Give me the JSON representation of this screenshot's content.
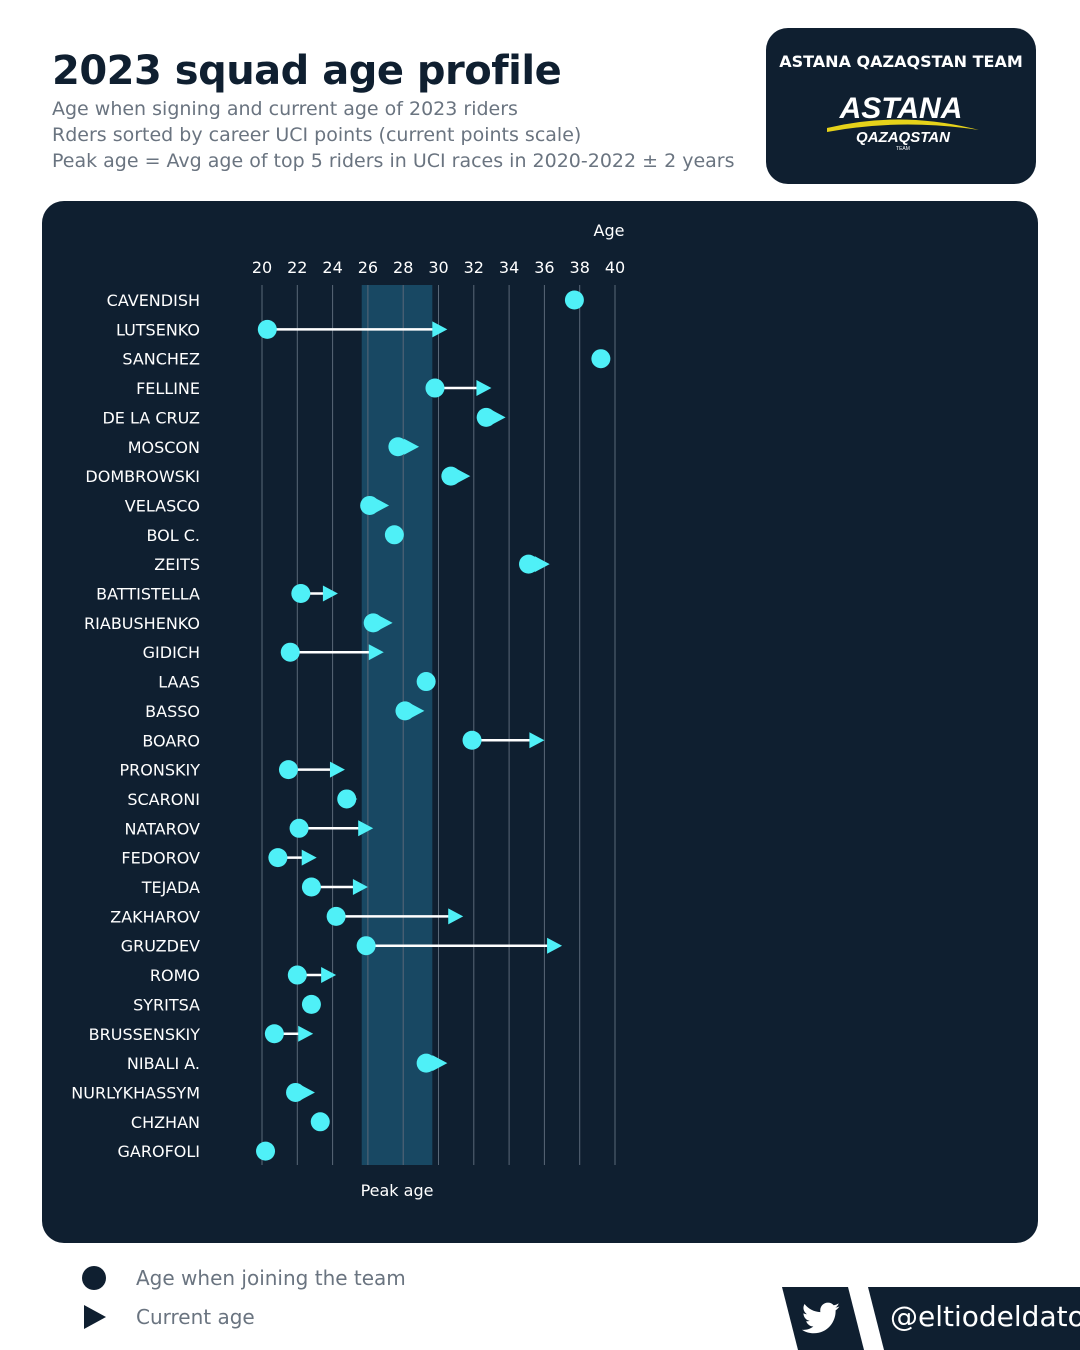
{
  "header": {
    "title": "2023 squad age profile",
    "subtitle_lines": [
      "Age when signing and current age of 2023 riders",
      "Rders sorted by career UCI points (current points scale)",
      "Peak age = Avg age of top 5 riders in UCI races in 2020-2022 ± 2 years"
    ]
  },
  "team_badge": {
    "name": "ASTANA QAZAQSTAN TEAM",
    "logo_text_main": "ASTANA",
    "logo_text_sub": "QAZAQSTAN",
    "logo_text_small": "TEAM"
  },
  "legend": {
    "joining_label": "Age when joining the team",
    "current_label": "Current age"
  },
  "footer": {
    "handle": "@eltiodeldato",
    "icon": "twitter-bird-icon"
  },
  "colors": {
    "background": "#ffffff",
    "panel": "#0f1f30",
    "peak_band": "#184863",
    "marker": "#4ff0f7",
    "arrow_line": "#ffffff",
    "grid": "#5a6878"
  },
  "chart_data": {
    "type": "dumbbell",
    "xlabel": "Age",
    "xlim": [
      20,
      40
    ],
    "xticks": [
      20,
      22,
      24,
      26,
      28,
      30,
      32,
      34,
      36,
      38,
      40
    ],
    "band": {
      "label": "Peak age",
      "from": 25.65,
      "to": 29.65
    },
    "riders": [
      {
        "name": "CAVENDISH",
        "join": 37.7,
        "current": null
      },
      {
        "name": "LUTSENKO",
        "join": 20.3,
        "current": 30.5
      },
      {
        "name": "SANCHEZ",
        "join": 39.2,
        "current": null
      },
      {
        "name": "FELLINE",
        "join": 29.8,
        "current": 33.0
      },
      {
        "name": "DE LA CRUZ",
        "join": 32.7,
        "current": 33.8
      },
      {
        "name": "MOSCON",
        "join": 27.7,
        "current": 28.9
      },
      {
        "name": "DOMBROWSKI",
        "join": 30.7,
        "current": 31.8
      },
      {
        "name": "VELASCO",
        "join": 26.1,
        "current": 27.2
      },
      {
        "name": "BOL C.",
        "join": 27.5,
        "current": null
      },
      {
        "name": "ZEITS",
        "join": 35.1,
        "current": 36.3
      },
      {
        "name": "BATTISTELLA",
        "join": 22.2,
        "current": 24.3
      },
      {
        "name": "RIABUSHENKO",
        "join": 26.3,
        "current": 27.4
      },
      {
        "name": "GIDICH",
        "join": 21.6,
        "current": 26.9
      },
      {
        "name": "LAAS",
        "join": 29.3,
        "current": null
      },
      {
        "name": "BASSO",
        "join": 28.1,
        "current": 29.2
      },
      {
        "name": "BOARO",
        "join": 31.9,
        "current": 36.0
      },
      {
        "name": "PRONSKIY",
        "join": 21.5,
        "current": 24.7
      },
      {
        "name": "SCARONI",
        "join": 24.8,
        "current": 25.4
      },
      {
        "name": "NATAROV",
        "join": 22.1,
        "current": 26.3
      },
      {
        "name": "FEDOROV",
        "join": 20.9,
        "current": 23.1
      },
      {
        "name": "TEJADA",
        "join": 22.8,
        "current": 26.0
      },
      {
        "name": "ZAKHAROV",
        "join": 24.2,
        "current": 31.4
      },
      {
        "name": "GRUZDEV",
        "join": 25.9,
        "current": 37.0
      },
      {
        "name": "ROMO",
        "join": 22.0,
        "current": 24.2
      },
      {
        "name": "SYRITSA",
        "join": 22.8,
        "current": null
      },
      {
        "name": "BRUSSENSKIY",
        "join": 20.7,
        "current": 22.9
      },
      {
        "name": "NIBALI A.",
        "join": 29.3,
        "current": 30.5
      },
      {
        "name": "NURLYKHASSYM",
        "join": 21.9,
        "current": 23.0
      },
      {
        "name": "CHZHAN",
        "join": 23.3,
        "current": null
      },
      {
        "name": "GAROFOLI",
        "join": 20.2,
        "current": null
      }
    ]
  }
}
